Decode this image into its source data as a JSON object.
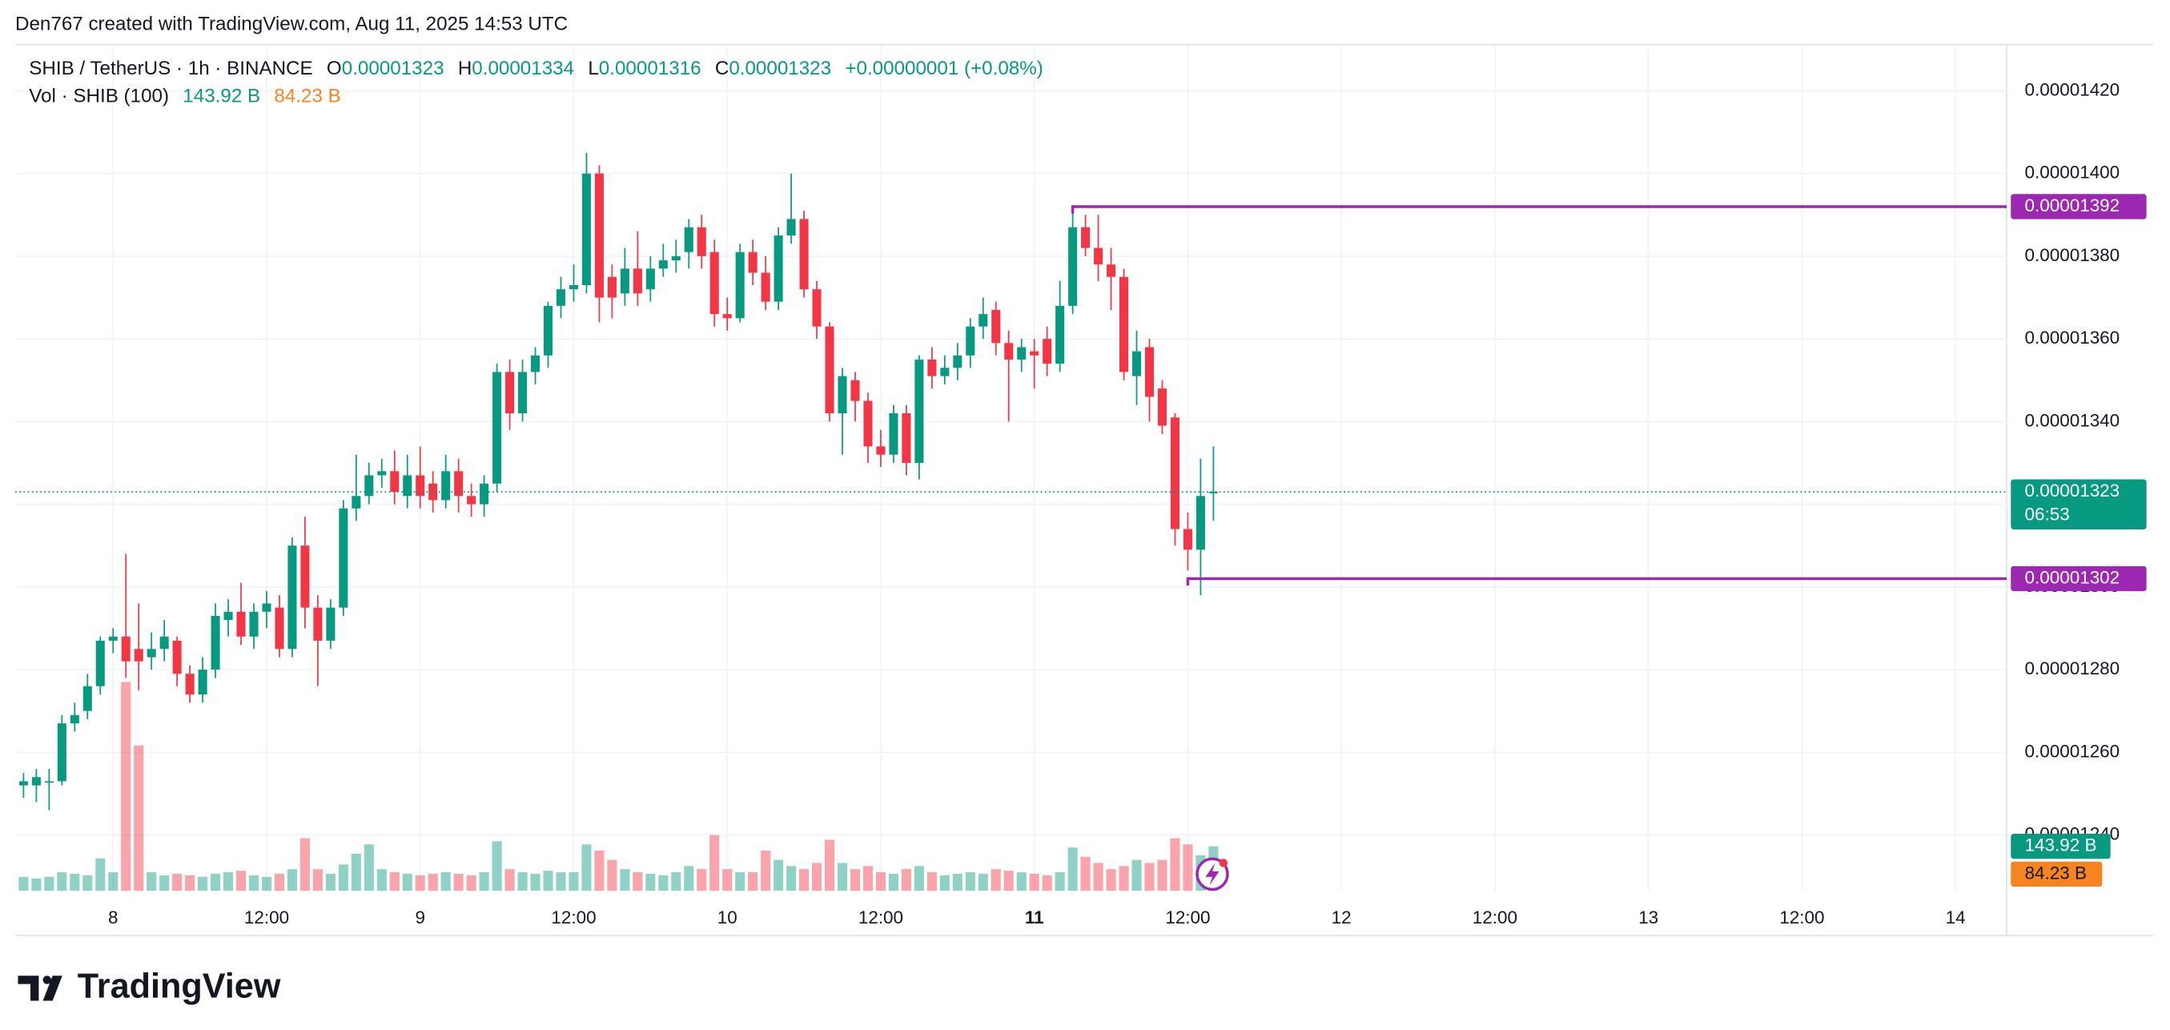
{
  "header": {
    "text": "Den767 created with TradingView.com, Aug 11, 2025 14:53 UTC"
  },
  "footer": {
    "logo": "TradingView"
  },
  "chart_data": {
    "type": "candlestick",
    "legend": {
      "symbol": "SHIB / TetherUS · 1h · BINANCE",
      "o": "O",
      "open": "0.00001323",
      "h": "H",
      "high": "0.00001334",
      "l": "L",
      "low": "0.00001316",
      "c": "C",
      "close": "0.00001323",
      "change": "+0.00000001 (+0.08%)",
      "volume_title": "Vol · SHIB (100)",
      "volume": "143.92 B",
      "volume_ma": "84.23 B"
    },
    "up_color": "#089981",
    "down_color": "#f23645",
    "open": [
      1.252e-05,
      1.252e-05,
      1.253e-05,
      1.253e-05,
      1.267e-05,
      1.27e-05,
      1.276e-05,
      1.287e-05,
      1.288e-05,
      1.285e-05,
      1.283e-05,
      1.285e-05,
      1.287e-05,
      1.279e-05,
      1.274e-05,
      1.28e-05,
      1.292e-05,
      1.294e-05,
      1.288e-05,
      1.294e-05,
      1.295e-05,
      1.285e-05,
      1.31e-05,
      1.295e-05,
      1.287e-05,
      1.295e-05,
      1.319e-05,
      1.322e-05,
      1.327e-05,
      1.328e-05,
      1.322e-05,
      1.327e-05,
      1.325e-05,
      1.321e-05,
      1.328e-05,
      1.322e-05,
      1.32e-05,
      1.325e-05,
      1.352e-05,
      1.342e-05,
      1.352e-05,
      1.356e-05,
      1.368e-05,
      1.372e-05,
      1.373e-05,
      1.4e-05,
      1.375e-05,
      1.371e-05,
      1.377e-05,
      1.372e-05,
      1.377e-05,
      1.379e-05,
      1.381e-05,
      1.387e-05,
      1.381e-05,
      1.366e-05,
      1.365e-05,
      1.381e-05,
      1.376e-05,
      1.369e-05,
      1.385e-05,
      1.389e-05,
      1.372e-05,
      1.363e-05,
      1.342e-05,
      1.35e-05,
      1.345e-05,
      1.334e-05,
      1.332e-05,
      1.342e-05,
      1.33e-05,
      1.355e-05,
      1.351e-05,
      1.353e-05,
      1.356e-05,
      1.363e-05,
      1.367e-05,
      1.359e-05,
      1.355e-05,
      1.357e-05,
      1.36e-05,
      1.354e-05,
      1.368e-05,
      1.387e-05,
      1.382e-05,
      1.378e-05,
      1.375e-05,
      1.351e-05,
      1.358e-05,
      1.348e-05,
      1.341e-05,
      1.314e-05,
      1.309e-05,
      1.323e-05
    ],
    "high": [
      1.255e-05,
      1.256e-05,
      1.256e-05,
      1.269e-05,
      1.272e-05,
      1.279e-05,
      1.288e-05,
      1.29e-05,
      1.308e-05,
      1.296e-05,
      1.289e-05,
      1.292e-05,
      1.288e-05,
      1.281e-05,
      1.283e-05,
      1.296e-05,
      1.297e-05,
      1.301e-05,
      1.296e-05,
      1.299e-05,
      1.298e-05,
      1.312e-05,
      1.317e-05,
      1.298e-05,
      1.297e-05,
      1.321e-05,
      1.332e-05,
      1.33e-05,
      1.331e-05,
      1.333e-05,
      1.332e-05,
      1.334e-05,
      1.328e-05,
      1.332e-05,
      1.331e-05,
      1.325e-05,
      1.327e-05,
      1.354e-05,
      1.355e-05,
      1.355e-05,
      1.358e-05,
      1.369e-05,
      1.375e-05,
      1.378e-05,
      1.405e-05,
      1.402e-05,
      1.378e-05,
      1.382e-05,
      1.386e-05,
      1.38e-05,
      1.383e-05,
      1.384e-05,
      1.389e-05,
      1.39e-05,
      1.384e-05,
      1.37e-05,
      1.383e-05,
      1.384e-05,
      1.38e-05,
      1.387e-05,
      1.4e-05,
      1.391e-05,
      1.374e-05,
      1.364e-05,
      1.353e-05,
      1.352e-05,
      1.347e-05,
      1.338e-05,
      1.344e-05,
      1.344e-05,
      1.356e-05,
      1.358e-05,
      1.356e-05,
      1.359e-05,
      1.365e-05,
      1.37e-05,
      1.369e-05,
      1.362e-05,
      1.36e-05,
      1.36e-05,
      1.363e-05,
      1.374e-05,
      1.392e-05,
      1.39e-05,
      1.39e-05,
      1.382e-05,
      1.377e-05,
      1.362e-05,
      1.36e-05,
      1.35e-05,
      1.342e-05,
      1.318e-05,
      1.331e-05,
      1.334e-05
    ],
    "low": [
      1.249e-05,
      1.248e-05,
      1.246e-05,
      1.252e-05,
      1.265e-05,
      1.268e-05,
      1.274e-05,
      1.284e-05,
      1.278e-05,
      1.275e-05,
      1.28e-05,
      1.282e-05,
      1.276e-05,
      1.272e-05,
      1.272e-05,
      1.278e-05,
      1.288e-05,
      1.286e-05,
      1.285e-05,
      1.29e-05,
      1.283e-05,
      1.283e-05,
      1.29e-05,
      1.276e-05,
      1.285e-05,
      1.293e-05,
      1.316e-05,
      1.32e-05,
      1.324e-05,
      1.32e-05,
      1.319e-05,
      1.319e-05,
      1.318e-05,
      1.319e-05,
      1.318e-05,
      1.317e-05,
      1.317e-05,
      1.323e-05,
      1.338e-05,
      1.34e-05,
      1.349e-05,
      1.353e-05,
      1.365e-05,
      1.369e-05,
      1.371e-05,
      1.364e-05,
      1.365e-05,
      1.368e-05,
      1.368e-05,
      1.369e-05,
      1.375e-05,
      1.376e-05,
      1.377e-05,
      1.377e-05,
      1.363e-05,
      1.362e-05,
      1.364e-05,
      1.373e-05,
      1.367e-05,
      1.367e-05,
      1.383e-05,
      1.37e-05,
      1.36e-05,
      1.34e-05,
      1.332e-05,
      1.34e-05,
      1.33e-05,
      1.329e-05,
      1.33e-05,
      1.327e-05,
      1.326e-05,
      1.348e-05,
      1.349e-05,
      1.35e-05,
      1.353e-05,
      1.36e-05,
      1.356e-05,
      1.34e-05,
      1.352e-05,
      1.348e-05,
      1.351e-05,
      1.352e-05,
      1.366e-05,
      1.38e-05,
      1.374e-05,
      1.367e-05,
      1.35e-05,
      1.344e-05,
      1.34e-05,
      1.337e-05,
      1.31e-05,
      1.304e-05,
      1.298e-05,
      1.316e-05
    ],
    "close": [
      1.253e-05,
      1.254e-05,
      1.253e-05,
      1.267e-05,
      1.269e-05,
      1.276e-05,
      1.287e-05,
      1.288e-05,
      1.282e-05,
      1.282e-05,
      1.285e-05,
      1.288e-05,
      1.279e-05,
      1.274e-05,
      1.28e-05,
      1.293e-05,
      1.294e-05,
      1.288e-05,
      1.294e-05,
      1.296e-05,
      1.285e-05,
      1.31e-05,
      1.295e-05,
      1.287e-05,
      1.295e-05,
      1.319e-05,
      1.322e-05,
      1.327e-05,
      1.328e-05,
      1.323e-05,
      1.327e-05,
      1.322e-05,
      1.321e-05,
      1.328e-05,
      1.322e-05,
      1.32e-05,
      1.325e-05,
      1.352e-05,
      1.342e-05,
      1.352e-05,
      1.356e-05,
      1.368e-05,
      1.372e-05,
      1.373e-05,
      1.4e-05,
      1.37e-05,
      1.37e-05,
      1.377e-05,
      1.371e-05,
      1.377e-05,
      1.379e-05,
      1.38e-05,
      1.387e-05,
      1.38e-05,
      1.366e-05,
      1.365e-05,
      1.381e-05,
      1.376e-05,
      1.369e-05,
      1.385e-05,
      1.389e-05,
      1.372e-05,
      1.363e-05,
      1.342e-05,
      1.351e-05,
      1.345e-05,
      1.334e-05,
      1.332e-05,
      1.342e-05,
      1.33e-05,
      1.355e-05,
      1.351e-05,
      1.353e-05,
      1.356e-05,
      1.363e-05,
      1.366e-05,
      1.359e-05,
      1.355e-05,
      1.358e-05,
      1.356e-05,
      1.354e-05,
      1.368e-05,
      1.387e-05,
      1.382e-05,
      1.378e-05,
      1.375e-05,
      1.352e-05,
      1.357e-05,
      1.346e-05,
      1.339e-05,
      1.314e-05,
      1.309e-05,
      1.322e-05,
      1.323e-05
    ],
    "volume": [
      45,
      40,
      45,
      60,
      55,
      50,
      105,
      60,
      675,
      470,
      60,
      50,
      55,
      50,
      45,
      55,
      60,
      65,
      50,
      45,
      55,
      70,
      170,
      70,
      55,
      85,
      120,
      150,
      70,
      60,
      55,
      50,
      55,
      60,
      55,
      50,
      60,
      160,
      70,
      60,
      55,
      65,
      60,
      60,
      150,
      130,
      100,
      70,
      60,
      55,
      50,
      60,
      80,
      70,
      180,
      70,
      60,
      60,
      130,
      100,
      80,
      70,
      90,
      165,
      90,
      70,
      80,
      60,
      55,
      70,
      80,
      60,
      50,
      55,
      60,
      55,
      70,
      65,
      60,
      55,
      50,
      60,
      140,
      110,
      90,
      70,
      80,
      100,
      90,
      100,
      170,
      150,
      115,
      143.92
    ],
    "volume_ma_value": 84.23,
    "volume_ylim": [
      0,
      900
    ],
    "xlim": [
      -0.65,
      155
    ],
    "xticks": [
      {
        "value": 7,
        "label": "8"
      },
      {
        "value": 19,
        "label": "12:00"
      },
      {
        "value": 31,
        "label": "9"
      },
      {
        "value": 43,
        "label": "12:00"
      },
      {
        "value": 55,
        "label": "10"
      },
      {
        "value": 67,
        "label": "12:00"
      },
      {
        "value": 79,
        "label": "11"
      },
      {
        "value": 91,
        "label": "12:00"
      },
      {
        "value": 103,
        "label": "12"
      },
      {
        "value": 115,
        "label": "12:00"
      },
      {
        "value": 127,
        "label": "13"
      },
      {
        "value": 139,
        "label": "12:00"
      },
      {
        "value": 151,
        "label": "14"
      }
    ],
    "ylim": [
      1.2265e-05,
      1.4312e-05
    ],
    "yticks": [
      {
        "value": 1.24e-05,
        "label": "0.00001240"
      },
      {
        "value": 1.26e-05,
        "label": "0.00001260"
      },
      {
        "value": 1.28e-05,
        "label": "0.00001280"
      },
      {
        "value": 1.3e-05,
        "label": "0.00001300"
      },
      {
        "value": 1.32e-05,
        "label": "0.00001320"
      },
      {
        "value": 1.34e-05,
        "label": "0.00001340"
      },
      {
        "value": 1.36e-05,
        "label": "0.00001360"
      },
      {
        "value": 1.38e-05,
        "label": "0.00001380"
      },
      {
        "value": 1.4e-05,
        "label": "0.00001400"
      },
      {
        "value": 1.42e-05,
        "label": "0.00001420"
      }
    ],
    "grid": true,
    "current_price": {
      "value": 1.323e-05,
      "label": "0.00001323",
      "countdown": "06:53"
    },
    "levels": [
      {
        "value": 1.392e-05,
        "label": "0.00001392",
        "from": 82,
        "color": "#9c27b0"
      },
      {
        "value": 1.302e-05,
        "label": "0.00001302",
        "from": 91,
        "color": "#9c27b0"
      }
    ]
  }
}
